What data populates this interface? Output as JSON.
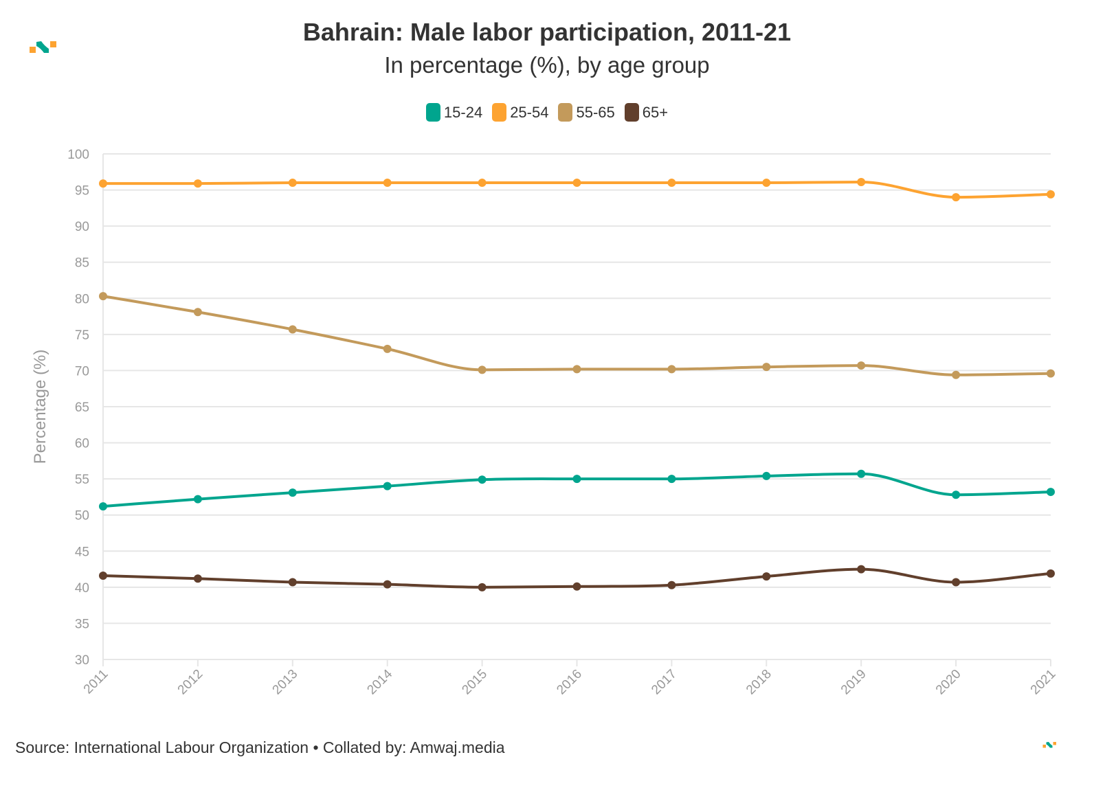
{
  "title": "Bahrain: Male labor participation, 2011-21",
  "subtitle": "In percentage (%), by age group",
  "source": "Source: International Labour Organization • Collated by: Amwaj.media",
  "logo": {
    "name": "amwaj-logo",
    "colors": {
      "orange": "#fda331",
      "teal": "#00a58e"
    }
  },
  "chart_data": {
    "type": "line",
    "title": "Bahrain: Male labor participation, 2011-21",
    "subtitle": "In percentage (%), by age group",
    "xlabel": "",
    "ylabel": "Percentage (%)",
    "ylim": [
      30,
      100
    ],
    "yticks": [
      30,
      35,
      40,
      45,
      50,
      55,
      60,
      65,
      70,
      75,
      80,
      85,
      90,
      95,
      100
    ],
    "x": [
      "2011",
      "2012",
      "2013",
      "2014",
      "2015",
      "2016",
      "2017",
      "2018",
      "2019",
      "2020",
      "2021"
    ],
    "grid": true,
    "legend": "top-center",
    "series": [
      {
        "name": "15-24",
        "color": "#00a58e",
        "values": [
          51.2,
          52.2,
          53.1,
          54.0,
          54.9,
          55.0,
          55.0,
          55.4,
          55.7,
          52.8,
          53.2
        ]
      },
      {
        "name": "25-54",
        "color": "#fda331",
        "values": [
          95.9,
          95.9,
          96.0,
          96.0,
          96.0,
          96.0,
          96.0,
          96.0,
          96.1,
          94.0,
          94.4
        ]
      },
      {
        "name": "55-65",
        "color": "#c39a5b",
        "values": [
          80.3,
          78.1,
          75.7,
          73.0,
          70.1,
          70.2,
          70.2,
          70.5,
          70.7,
          69.4,
          69.6
        ]
      },
      {
        "name": "65+",
        "color": "#613f2c",
        "values": [
          41.6,
          41.2,
          40.7,
          40.4,
          40.0,
          40.1,
          40.3,
          41.5,
          42.5,
          40.7,
          41.9
        ]
      }
    ]
  }
}
